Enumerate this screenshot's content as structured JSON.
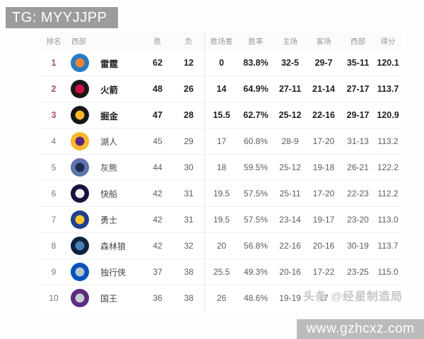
{
  "banner": {
    "text": "TG: MYYJJPP",
    "bg_color": "#9c9c9c",
    "text_color": "#ffffff"
  },
  "table": {
    "headers": [
      "排名",
      "西部",
      "胜",
      "负",
      "胜场差",
      "胜率",
      "主场",
      "客场",
      "西部",
      "得分"
    ],
    "rank_top3_color": "#a8535b",
    "rows": [
      {
        "rank": "1",
        "team": "雷霆",
        "team_en": "thunder",
        "wins": "62",
        "losses": "12",
        "gb": "0",
        "pct": "83.8%",
        "home": "32-5",
        "away": "29-7",
        "west": "35-11",
        "pts": "120.1",
        "bold": true,
        "logo_colors": [
          "#2a7bc4",
          "#ef8432"
        ]
      },
      {
        "rank": "2",
        "team": "火箭",
        "team_en": "rockets",
        "wins": "48",
        "losses": "26",
        "gb": "14",
        "pct": "64.9%",
        "home": "27-11",
        "away": "21-14",
        "west": "27-17",
        "pts": "113.7",
        "bold": true,
        "logo_colors": [
          "#1a1a1a",
          "#ce1141"
        ]
      },
      {
        "rank": "3",
        "team": "掘金",
        "team_en": "nuggets",
        "wins": "47",
        "losses": "28",
        "gb": "15.5",
        "pct": "62.7%",
        "home": "25-12",
        "away": "22-16",
        "west": "29-17",
        "pts": "120.9",
        "bold": true,
        "logo_colors": [
          "#15171c",
          "#fdb927"
        ]
      },
      {
        "rank": "4",
        "team": "湖人",
        "team_en": "lakers",
        "wins": "45",
        "losses": "29",
        "gb": "17",
        "pct": "60.8%",
        "home": "28-9",
        "away": "17-20",
        "west": "31-13",
        "pts": "113.2",
        "bold": false,
        "logo_colors": [
          "#fdb927",
          "#552583"
        ]
      },
      {
        "rank": "5",
        "team": "灰熊",
        "team_en": "grizzlies",
        "wins": "44",
        "losses": "30",
        "gb": "18",
        "pct": "59.5%",
        "home": "25-12",
        "away": "19-18",
        "west": "26-21",
        "pts": "122.2",
        "bold": false,
        "logo_colors": [
          "#5d76a9",
          "#1c2d50"
        ]
      },
      {
        "rank": "6",
        "team": "快船",
        "team_en": "clippers",
        "wins": "42",
        "losses": "31",
        "gb": "19.5",
        "pct": "57.5%",
        "home": "25-11",
        "away": "17-20",
        "west": "22-23",
        "pts": "112.2",
        "bold": false,
        "logo_colors": [
          "#14153d",
          "#f2f2f2"
        ]
      },
      {
        "rank": "7",
        "team": "勇士",
        "team_en": "warriors",
        "wins": "42",
        "losses": "31",
        "gb": "19.5",
        "pct": "57.5%",
        "home": "23-14",
        "away": "19-17",
        "west": "23-20",
        "pts": "113.0",
        "bold": false,
        "logo_colors": [
          "#1d428a",
          "#ffc72c"
        ]
      },
      {
        "rank": "8",
        "team": "森林狼",
        "team_en": "timberwolves",
        "wins": "42",
        "losses": "32",
        "gb": "20",
        "pct": "56.8%",
        "home": "22-16",
        "away": "20-16",
        "west": "30-19",
        "pts": "113.7",
        "bold": false,
        "logo_colors": [
          "#0c2340",
          "#4a7fb5"
        ]
      },
      {
        "rank": "9",
        "team": "独行侠",
        "team_en": "mavericks",
        "wins": "37",
        "losses": "38",
        "gb": "25.5",
        "pct": "49.3%",
        "home": "20-16",
        "away": "17-22",
        "west": "23-25",
        "pts": "115.0",
        "bold": false,
        "logo_colors": [
          "#0053bc",
          "#b8c4ca"
        ]
      },
      {
        "rank": "10",
        "team": "国王",
        "team_en": "kings",
        "wins": "36",
        "losses": "38",
        "gb": "26",
        "pct": "48.6%",
        "home": "19-19",
        "away": "17",
        "west": "",
        "pts": "",
        "bold": false,
        "logo_colors": [
          "#5a2d81",
          "#c4ced4"
        ]
      }
    ]
  },
  "watermarks": {
    "toutiao": "头条 @经星制造局",
    "site": "www.gzhcxz.com"
  }
}
